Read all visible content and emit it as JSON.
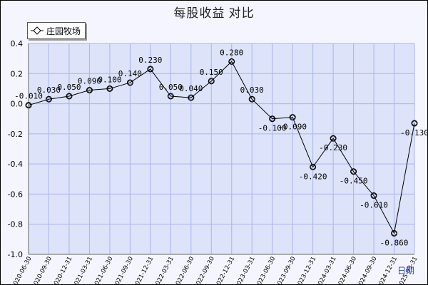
{
  "chart_data": {
    "type": "line",
    "title": "每股收益 对比",
    "xlabel": "日期",
    "ylabel": "",
    "ylim": [
      -1.0,
      0.4
    ],
    "yticks": [
      "0.4",
      "0.2",
      "0.0",
      "-0.2",
      "-0.4",
      "-0.6",
      "-0.8",
      "-1.0"
    ],
    "grid": true,
    "legend_position": "top-left",
    "categories": [
      "2020-06-30",
      "2020-09-30",
      "2020-12-31",
      "2021-03-31",
      "2021-06-30",
      "2021-09-30",
      "2021-12-31",
      "2022-03-31",
      "2022-06-30",
      "2022-09-30",
      "2022-12-31",
      "2023-03-31",
      "2023-06-30",
      "2023-09-30",
      "2023-12-31",
      "2024-03-31",
      "2024-06-30",
      "2024-09-30",
      "2024-12-31",
      "2025-03-31"
    ],
    "series": [
      {
        "name": "庄园牧场",
        "values": [
          -0.01,
          0.03,
          0.05,
          0.09,
          0.1,
          0.14,
          0.23,
          0.05,
          0.04,
          0.15,
          0.28,
          0.03,
          -0.1,
          -0.09,
          -0.42,
          -0.23,
          -0.45,
          -0.61,
          -0.86,
          -0.13
        ],
        "labels": [
          "-0.010",
          "0.030",
          "0.050",
          "0.090",
          "0.100",
          "0.140",
          "0.230",
          "0.050",
          "0.040",
          "0.150",
          "0.280",
          "0.030",
          "-0.100",
          "-0.090",
          "-0.420",
          "-0.230",
          "-0.450",
          "-0.610",
          "-0.860",
          "-0.130"
        ]
      }
    ],
    "colors": {
      "plot_bg": "#dde3f9",
      "grid": "#aab4ee",
      "line": "#000000",
      "frame_bg": "#f5f5ff"
    }
  }
}
